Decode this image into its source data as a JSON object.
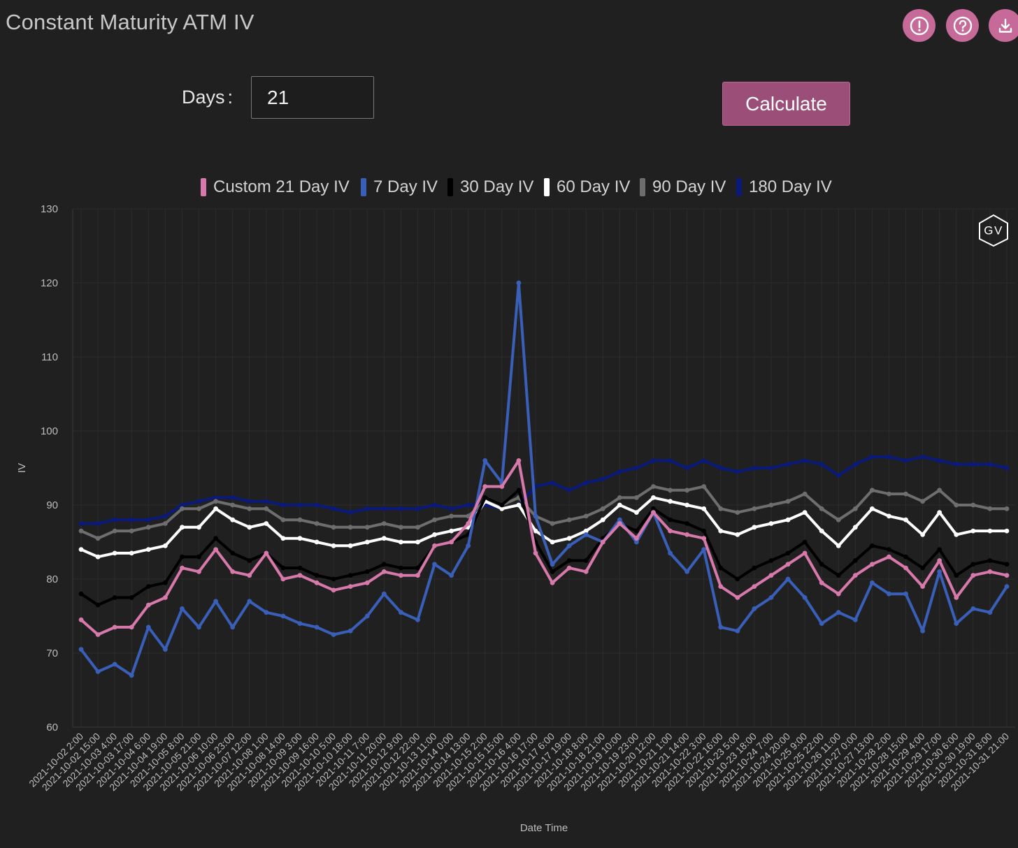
{
  "page": {
    "title": "Constant Maturity ATM IV",
    "days_label": "Days",
    "days_colon": ":",
    "days_value": "21",
    "calculate_label": "Calculate",
    "logo_text": "GV"
  },
  "colors": {
    "background": "#202020",
    "accent": "#c56a99",
    "button": "#9b4f78",
    "grid": "#2e2e2e"
  },
  "icons": [
    "info-icon",
    "help-icon",
    "download-icon"
  ],
  "chart_data": {
    "type": "line",
    "title": "",
    "xlabel": "Date Time",
    "ylabel": "IV",
    "ylim": [
      60,
      130
    ],
    "yticks": [
      60,
      70,
      80,
      90,
      100,
      110,
      120,
      130
    ],
    "grid": true,
    "legend_position": "top-center",
    "categories": [
      "2021-10-02 2:00",
      "2021-10-02 15:00",
      "2021-10-03 4:00",
      "2021-10-03 17:00",
      "2021-10-04 6:00",
      "2021-10-04 19:00",
      "2021-10-05 8:00",
      "2021-10-05 21:00",
      "2021-10-06 10:00",
      "2021-10-06 23:00",
      "2021-10-07 12:00",
      "2021-10-08 1:00",
      "2021-10-08 14:00",
      "2021-10-09 3:00",
      "2021-10-09 16:00",
      "2021-10-10 5:00",
      "2021-10-10 18:00",
      "2021-10-11 7:00",
      "2021-10-11 20:00",
      "2021-10-12 9:00",
      "2021-10-12 22:00",
      "2021-10-13 11:00",
      "2021-10-14 0:00",
      "2021-10-14 13:00",
      "2021-10-15 2:00",
      "2021-10-15 15:00",
      "2021-10-16 4:00",
      "2021-10-16 17:00",
      "2021-10-17 6:00",
      "2021-10-17 19:00",
      "2021-10-18 8:00",
      "2021-10-18 21:00",
      "2021-10-19 10:00",
      "2021-10-19 23:00",
      "2021-10-20 12:00",
      "2021-10-21 1:00",
      "2021-10-21 14:00",
      "2021-10-22 3:00",
      "2021-10-22 16:00",
      "2021-10-23 5:00",
      "2021-10-23 18:00",
      "2021-10-24 7:00",
      "2021-10-24 20:00",
      "2021-10-25 9:00",
      "2021-10-25 22:00",
      "2021-10-26 11:00",
      "2021-10-27 0:00",
      "2021-10-27 13:00",
      "2021-10-28 2:00",
      "2021-10-28 15:00",
      "2021-10-29 4:00",
      "2021-10-29 17:00",
      "2021-10-30 6:00",
      "2021-10-30 19:00",
      "2021-10-31 8:00",
      "2021-10-31 21:00"
    ],
    "series": [
      {
        "name": "Custom 21 Day IV",
        "color": "#d779aa",
        "values": [
          74.5,
          72.5,
          73.5,
          73.5,
          76.5,
          77.5,
          81.5,
          81.0,
          84.0,
          81.0,
          80.5,
          83.5,
          80.0,
          80.5,
          79.5,
          78.5,
          79.0,
          79.5,
          81.0,
          80.5,
          80.5,
          84.5,
          85.0,
          87.5,
          92.5,
          92.5,
          96.0,
          83.5,
          79.5,
          81.5,
          81.0,
          85.0,
          87.5,
          85.5,
          89.0,
          86.5,
          86.0,
          85.5,
          79.0,
          77.5,
          79.0,
          80.5,
          82.0,
          83.5,
          79.5,
          78.0,
          80.5,
          82.0,
          83.0,
          81.5,
          79.0,
          82.5,
          77.5,
          80.5,
          81.0,
          80.5
        ]
      },
      {
        "name": "7 Day IV",
        "color": "#3a5fb8",
        "values": [
          70.5,
          67.5,
          68.5,
          67.0,
          73.5,
          70.5,
          76.0,
          73.5,
          77.0,
          73.5,
          77.0,
          75.5,
          75.0,
          74.0,
          73.5,
          72.5,
          73.0,
          75.0,
          78.0,
          75.5,
          74.5,
          82.0,
          80.5,
          84.5,
          96.0,
          93.0,
          120.0,
          88.5,
          82.0,
          84.5,
          86.0,
          85.0,
          88.0,
          85.0,
          89.0,
          83.5,
          81.0,
          84.0,
          73.5,
          73.0,
          76.0,
          77.5,
          80.0,
          77.5,
          74.0,
          75.5,
          74.5,
          79.5,
          78.0,
          78.0,
          73.0,
          81.0,
          74.0,
          76.0,
          75.5,
          79.0
        ]
      },
      {
        "name": "30 Day IV",
        "color": "#000000",
        "values": [
          78.0,
          76.5,
          77.5,
          77.5,
          79.0,
          79.5,
          83.0,
          83.0,
          85.5,
          83.5,
          82.5,
          83.5,
          81.5,
          81.5,
          80.5,
          80.0,
          80.5,
          81.0,
          82.0,
          81.5,
          81.5,
          84.5,
          85.0,
          86.0,
          91.0,
          90.0,
          92.0,
          85.0,
          81.0,
          82.5,
          82.5,
          85.5,
          87.5,
          86.5,
          89.5,
          88.0,
          87.5,
          86.5,
          81.5,
          80.0,
          81.5,
          82.5,
          83.5,
          85.0,
          82.0,
          80.5,
          82.5,
          84.5,
          84.0,
          83.0,
          81.5,
          84.0,
          80.5,
          82.0,
          82.5,
          82.0
        ]
      },
      {
        "name": "60 Day IV",
        "color": "#ffffff",
        "values": [
          84.0,
          83.0,
          83.5,
          83.5,
          84.0,
          84.5,
          87.0,
          87.0,
          89.5,
          88.0,
          87.0,
          87.5,
          85.5,
          85.5,
          85.0,
          84.5,
          84.5,
          85.0,
          85.5,
          85.0,
          85.0,
          86.0,
          86.5,
          87.0,
          90.5,
          89.5,
          90.0,
          86.5,
          85.0,
          85.5,
          86.5,
          88.0,
          90.0,
          89.0,
          91.0,
          90.5,
          90.0,
          89.5,
          86.5,
          86.0,
          87.0,
          87.5,
          88.0,
          89.0,
          86.5,
          84.5,
          87.0,
          89.5,
          88.5,
          88.0,
          86.0,
          89.0,
          86.0,
          86.5,
          86.5,
          86.5
        ]
      },
      {
        "name": "90 Day IV",
        "color": "#6e6e6e",
        "values": [
          86.5,
          85.5,
          86.5,
          86.5,
          87.0,
          87.5,
          89.5,
          89.5,
          90.5,
          90.0,
          89.5,
          89.5,
          88.0,
          88.0,
          87.5,
          87.0,
          87.0,
          87.0,
          87.5,
          87.0,
          87.0,
          88.0,
          88.5,
          88.5,
          90.5,
          90.0,
          91.0,
          88.5,
          87.5,
          88.0,
          88.5,
          89.5,
          91.0,
          91.0,
          92.5,
          92.0,
          92.0,
          92.5,
          89.5,
          89.0,
          89.5,
          90.0,
          90.5,
          91.5,
          89.5,
          88.0,
          89.5,
          92.0,
          91.5,
          91.5,
          90.5,
          92.0,
          90.0,
          90.0,
          89.5,
          89.5
        ]
      },
      {
        "name": "180 Day IV",
        "color": "#0a1a7a",
        "values": [
          87.5,
          87.5,
          88.0,
          88.0,
          88.0,
          88.5,
          90.0,
          90.5,
          91.0,
          91.0,
          90.5,
          90.5,
          90.0,
          90.0,
          90.0,
          89.5,
          89.0,
          89.5,
          89.5,
          89.5,
          89.5,
          90.0,
          89.5,
          90.0,
          90.0,
          89.5,
          90.0,
          92.5,
          93.0,
          92.0,
          93.0,
          93.5,
          94.5,
          95.0,
          96.0,
          96.0,
          95.0,
          96.0,
          95.0,
          94.5,
          95.0,
          95.0,
          95.5,
          96.0,
          95.5,
          94.0,
          95.5,
          96.5,
          96.5,
          96.0,
          96.5,
          96.0,
          95.5,
          95.5,
          95.5,
          95.0
        ]
      }
    ]
  }
}
